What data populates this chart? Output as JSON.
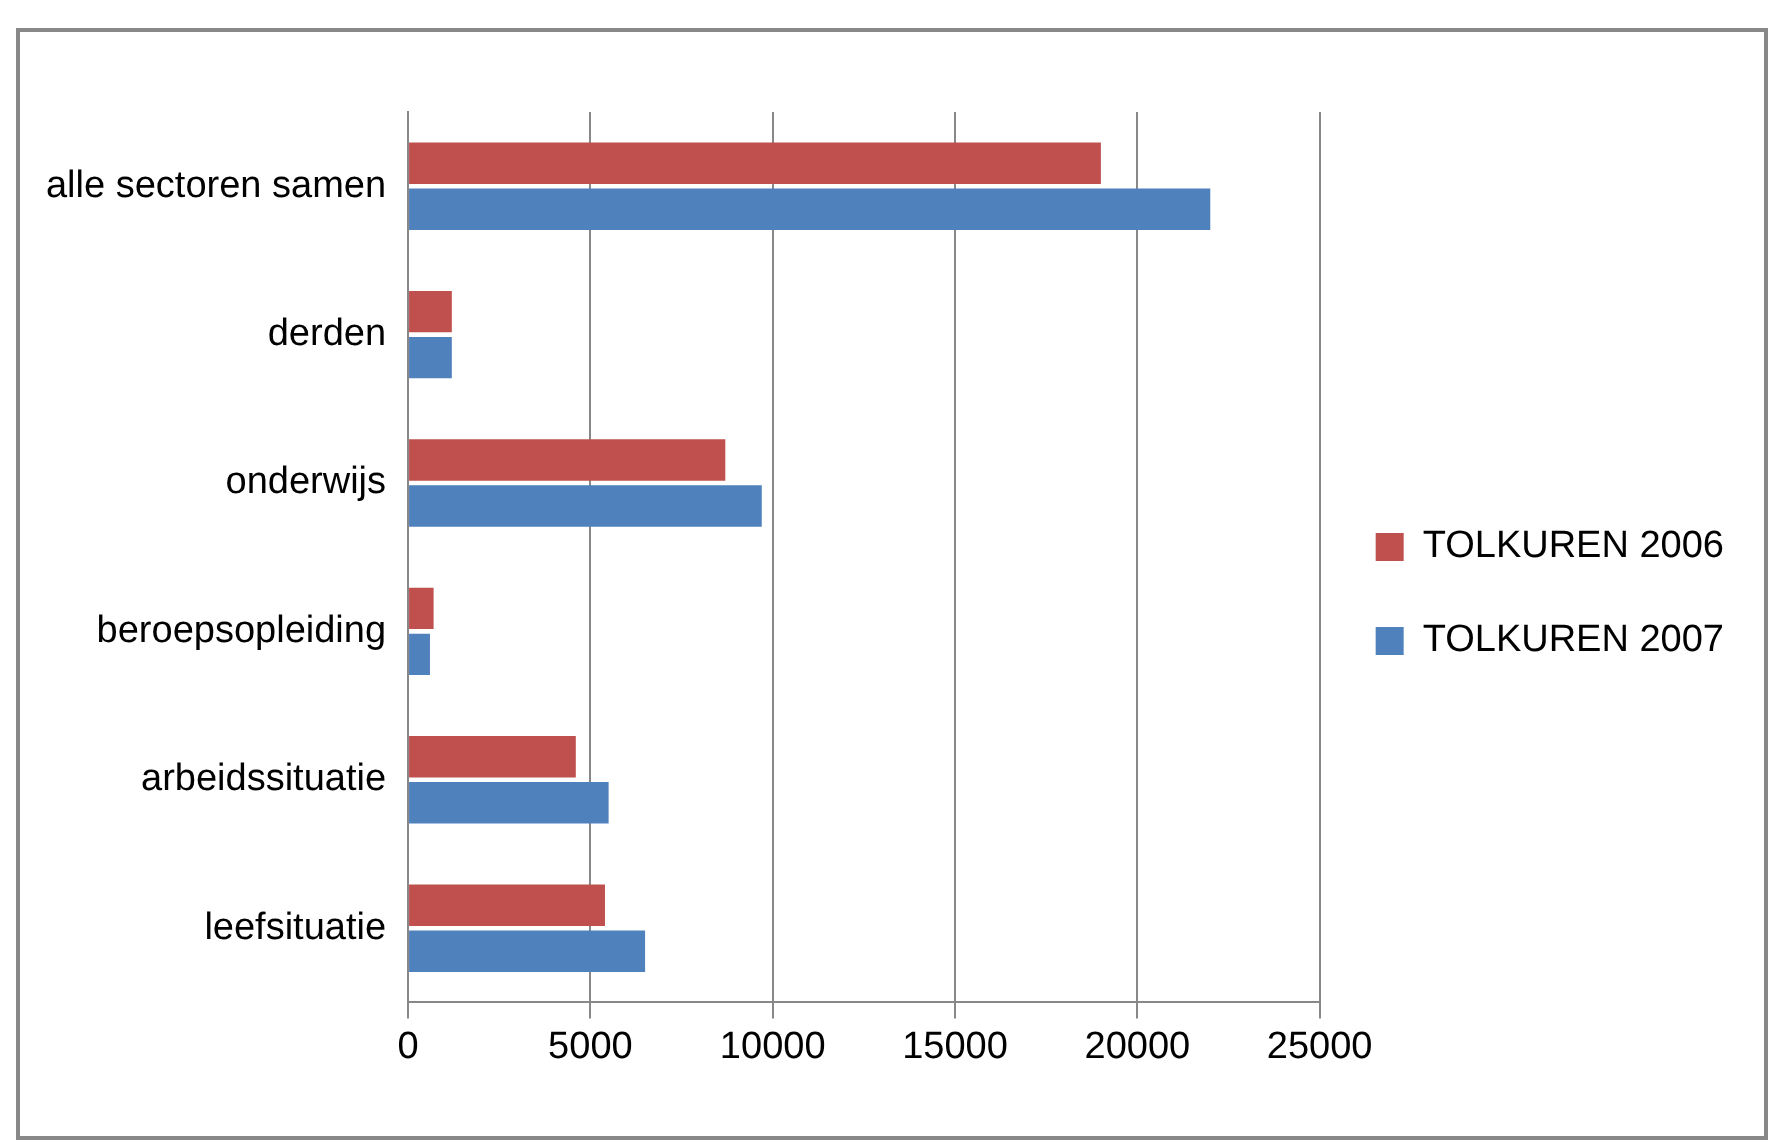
{
  "chart_data": {
    "type": "bar",
    "orientation": "horizontal",
    "categories": [
      "alle sectoren samen",
      "derden",
      "onderwijs",
      "beroepsopleiding",
      "arbeidssituatie",
      "leefsituatie"
    ],
    "series": [
      {
        "name": "TOLKUREN 2006",
        "color": "#c0504d",
        "values": [
          19000,
          1200,
          8700,
          700,
          4600,
          5400
        ]
      },
      {
        "name": "TOLKUREN 2007",
        "color": "#4f81bd",
        "values": [
          22000,
          1200,
          9700,
          600,
          5500,
          6500
        ]
      }
    ],
    "xlim": [
      0,
      25000
    ],
    "xticks": [
      0,
      5000,
      10000,
      15000,
      20000,
      25000
    ],
    "grid": "x",
    "legend": "right"
  }
}
